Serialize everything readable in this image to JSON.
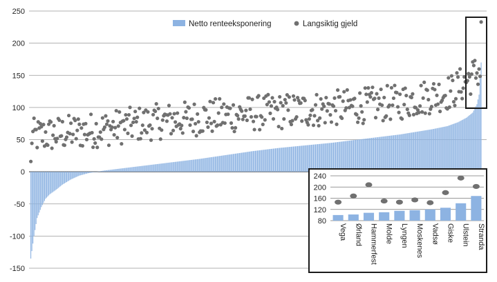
{
  "chart_data": [
    {
      "type": "bar+scatter",
      "title": "",
      "xlabel": "",
      "ylabel": "",
      "ylim": [
        -150,
        250
      ],
      "yticks": [
        -150,
        -100,
        -50,
        0,
        50,
        100,
        150,
        200,
        250
      ],
      "grid": true,
      "legend_position": "top-center",
      "series": [
        {
          "name": "Netto renteeksponering",
          "kind": "bar",
          "color": "#8db3e2",
          "n": 428,
          "description_values": [
            -135,
            -100,
            -72,
            -55,
            -42,
            -35,
            -30,
            -25,
            -20,
            -15,
            -10,
            -6,
            -3,
            0,
            2,
            5,
            10,
            15,
            20,
            25,
            30,
            35,
            40,
            45,
            50,
            55,
            60,
            65,
            70,
            80,
            90,
            100,
            120,
            140,
            170
          ],
          "quantile_points": [
            [
              0,
              -135
            ],
            [
              3,
              -100
            ],
            [
              6,
              -72
            ],
            [
              10,
              -55
            ],
            [
              14,
              -42
            ],
            [
              18,
              -35
            ],
            [
              24,
              -28
            ],
            [
              30,
              -20
            ],
            [
              38,
              -12
            ],
            [
              46,
              -6
            ],
            [
              55,
              -2
            ],
            [
              62,
              0
            ],
            [
              70,
              2
            ],
            [
              85,
              5
            ],
            [
              100,
              8
            ],
            [
              120,
              12
            ],
            [
              140,
              16
            ],
            [
              160,
              20
            ],
            [
              185,
              26
            ],
            [
              210,
              32
            ],
            [
              235,
              37
            ],
            [
              260,
              41
            ],
            [
              285,
              45
            ],
            [
              310,
              50
            ],
            [
              330,
              54
            ],
            [
              350,
              58
            ],
            [
              365,
              62
            ],
            [
              380,
              66
            ],
            [
              395,
              71
            ],
            [
              405,
              77
            ],
            [
              413,
              84
            ],
            [
              419,
              92
            ],
            [
              423,
              105
            ],
            [
              425,
              120
            ],
            [
              427,
              170
            ]
          ]
        },
        {
          "name": "Langsiktig gjeld",
          "kind": "scatter",
          "color": "#707070",
          "trend_points": [
            [
              0,
              55
            ],
            [
              60,
              65
            ],
            [
              120,
              78
            ],
            [
              200,
              90
            ],
            [
              280,
              98
            ],
            [
              350,
              108
            ],
            [
              400,
              125
            ],
            [
              427,
              160
            ]
          ],
          "spread": 28
        }
      ],
      "highlight_box": "top-right"
    },
    {
      "type": "bar+scatter",
      "title": "",
      "categories": [
        "Vega",
        "Ørland",
        "Hammerfest",
        "Molde",
        "Lyngen",
        "Moskenes",
        "Vadsø",
        "Giske",
        "Ulstein",
        "Stranda"
      ],
      "ylim": [
        80,
        240
      ],
      "yticks": [
        80,
        120,
        160,
        200,
        240
      ],
      "grid": true,
      "series": [
        {
          "name": "Netto renteeksponering",
          "kind": "bar",
          "color": "#8db3e2",
          "values": [
            100,
            102,
            108,
            110,
            115,
            117,
            120,
            126,
            142,
            168
          ]
        },
        {
          "name": "Langsiktig gjeld",
          "kind": "scatter",
          "color": "#707070",
          "values": [
            146,
            168,
            208,
            150,
            146,
            154,
            144,
            180,
            232,
            202
          ]
        }
      ]
    }
  ],
  "legend": {
    "bar_label": "Netto renteeksponering",
    "dot_label": "Langsiktig gjeld"
  }
}
